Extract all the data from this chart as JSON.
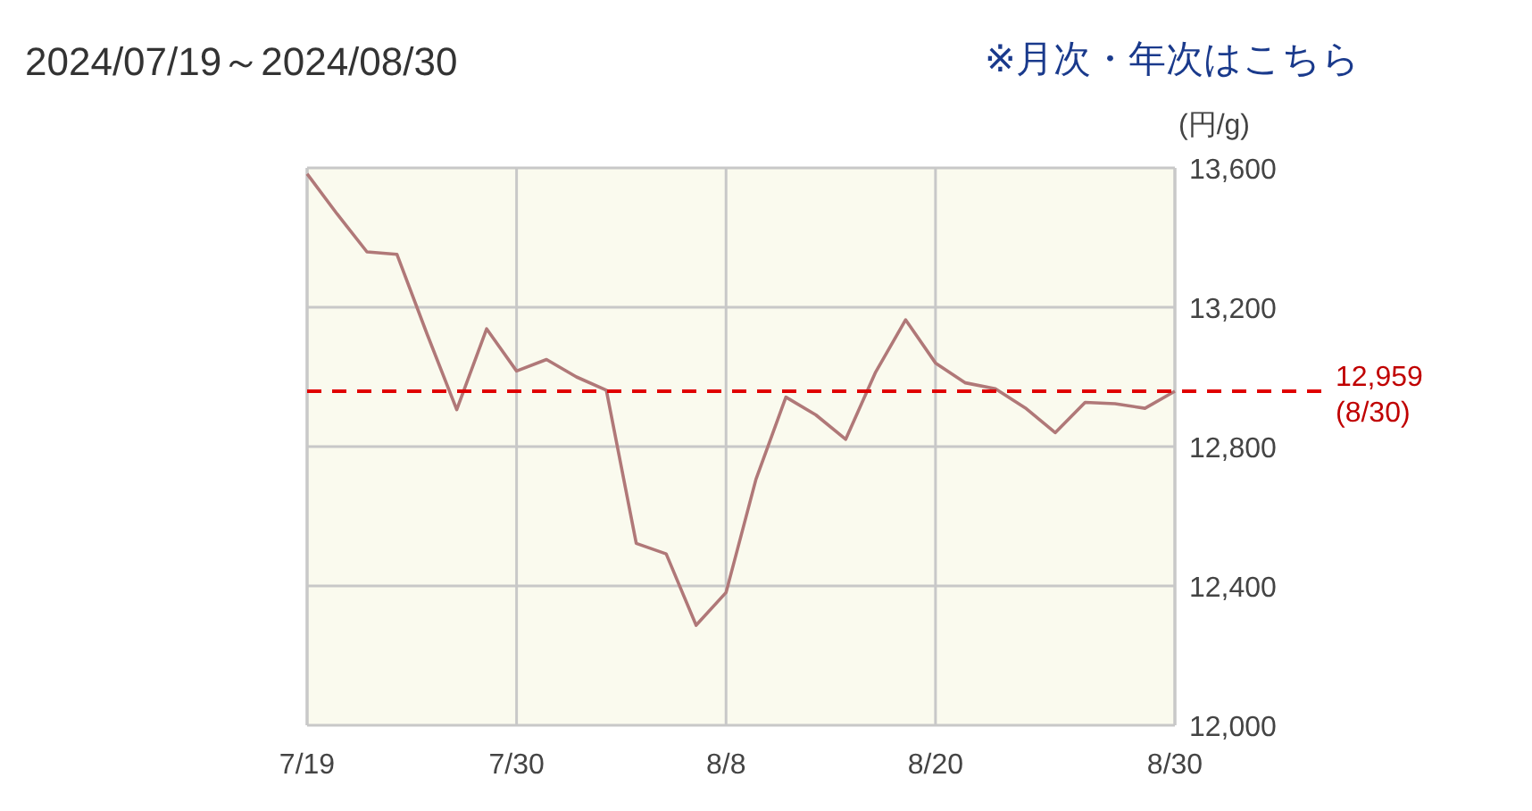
{
  "chart_data": {
    "type": "line",
    "title": "2024/07/19～2024/08/30",
    "annotations": [
      "※月次・年次はこちら"
    ],
    "ylabel": "(円/g)",
    "categories": [
      "7/19",
      null,
      null,
      null,
      null,
      null,
      null,
      "7/30",
      null,
      null,
      null,
      null,
      null,
      null,
      "8/8",
      null,
      null,
      null,
      null,
      null,
      null,
      "8/20",
      null,
      null,
      null,
      null,
      null,
      null,
      null,
      "8/30"
    ],
    "series": [
      {
        "color": "#b07878",
        "values": [
          13583,
          13468,
          13359,
          13352,
          13125,
          12906,
          13138,
          13017,
          13050,
          13000,
          12962,
          12522,
          12492,
          12287,
          12381,
          12706,
          12942,
          12891,
          12821,
          13014,
          13164,
          13040,
          12983,
          12966,
          12911,
          12840,
          12927,
          12923,
          12910,
          12959
        ]
      }
    ],
    "ylim": [
      12000,
      13600
    ],
    "yticks": [
      {
        "value": 12000,
        "label": "12,000"
      },
      {
        "value": 12400,
        "label": "12,400"
      },
      {
        "value": 12800,
        "label": "12,800"
      },
      {
        "value": 13200,
        "label": "13,200"
      },
      {
        "value": 13600,
        "label": "13,600"
      }
    ],
    "grid": true,
    "ref_lines": [
      {
        "axis": "y",
        "value": 12959,
        "label": "12,959\n(8/30)",
        "color": "#e00000",
        "line_style": "dashed"
      }
    ]
  }
}
